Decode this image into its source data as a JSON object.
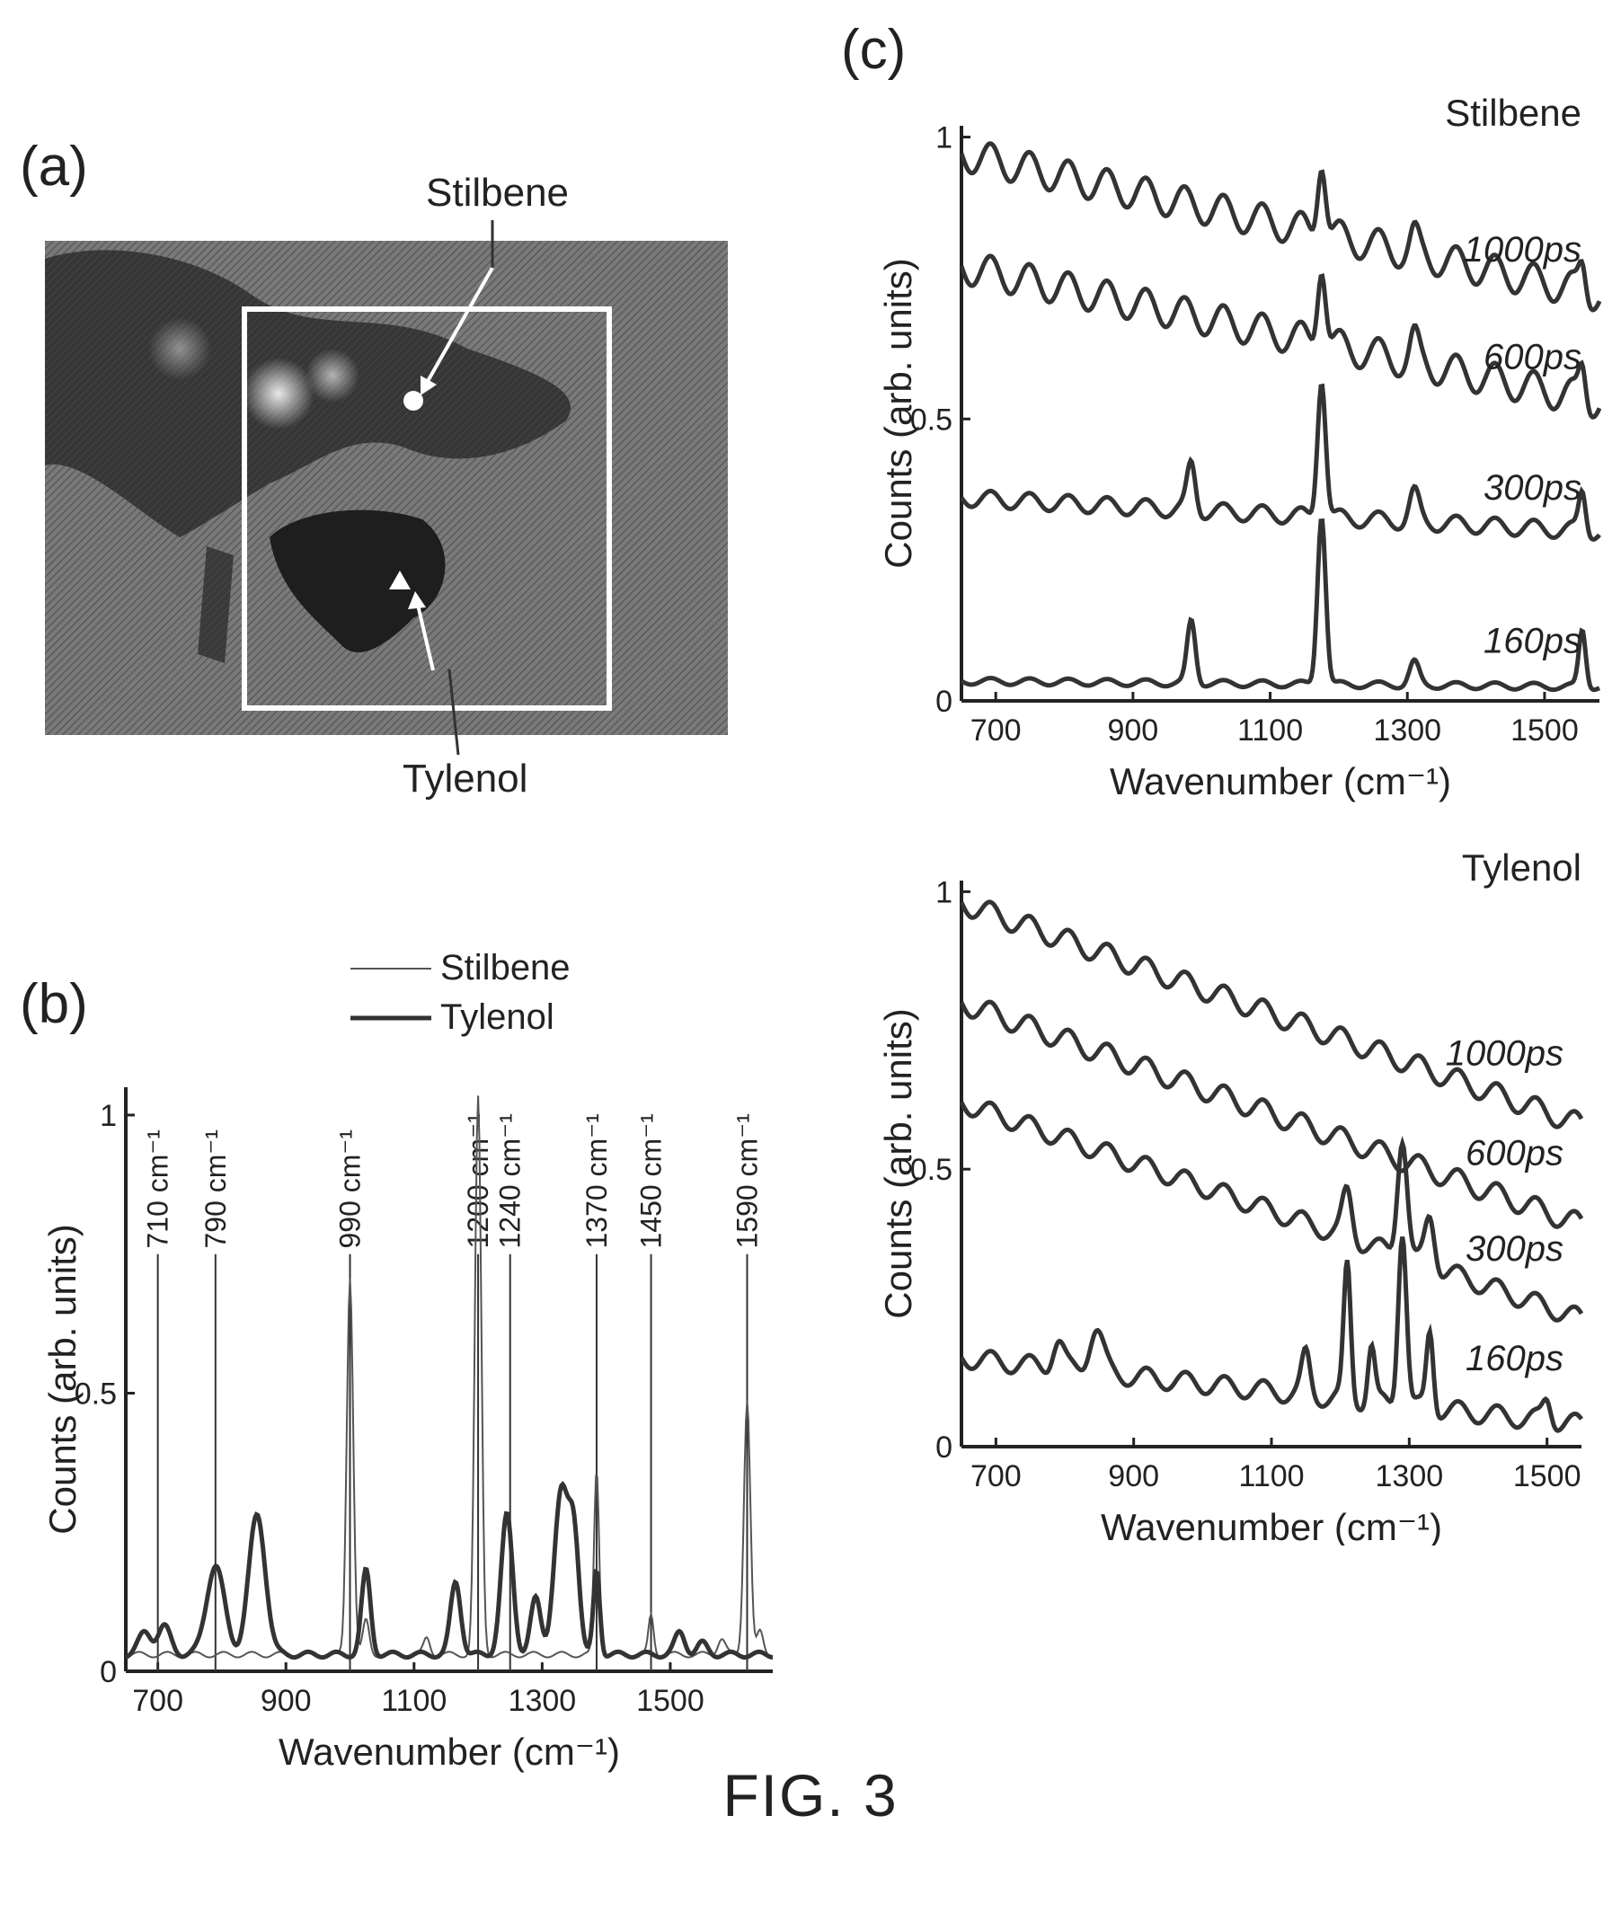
{
  "figure": {
    "caption": "FIG. 3",
    "panels": {
      "a": "(a)",
      "b": "(b)",
      "c": "(c)"
    }
  },
  "micrograph": {
    "labels": {
      "stilbene": "Stilbene",
      "tylenol": "Tylenol"
    },
    "markers": {
      "stilbene": "circle",
      "tylenol": "triangle"
    }
  },
  "chart_data": [
    {
      "panel": "b",
      "type": "line",
      "xlabel": "Wavenumber (cm⁻¹)",
      "ylabel": "Counts (arb. units)",
      "xlim": [
        650,
        1660
      ],
      "ylim": [
        0,
        1.05
      ],
      "xticks": [
        700,
        900,
        1100,
        1300,
        1500
      ],
      "yticks": [
        0,
        0.5,
        1
      ],
      "legend": {
        "placement": "top",
        "entries": [
          "Stilbene",
          "Tylenol"
        ]
      },
      "annotations": [
        "710 cm⁻¹",
        "790 cm⁻¹",
        "990 cm⁻¹",
        "1200 cm⁻¹",
        "1240 cm⁻¹",
        "1370 cm⁻¹",
        "1450 cm⁻¹",
        "1590 cm⁻¹"
      ],
      "annotation_positions": [
        700,
        790,
        1000,
        1200,
        1250,
        1385,
        1470,
        1620
      ],
      "series": [
        {
          "name": "Stilbene",
          "baseline": 0.03,
          "peaks": [
            [
              1000,
              0.68,
              5
            ],
            [
              1200,
              1.0,
              5
            ],
            [
              1385,
              0.33,
              4
            ],
            [
              1470,
              0.07,
              4
            ],
            [
              1620,
              0.46,
              5
            ],
            [
              1025,
              0.06,
              5
            ],
            [
              1120,
              0.03,
              5
            ],
            [
              1580,
              0.03,
              6
            ],
            [
              1640,
              0.04,
              5
            ]
          ]
        },
        {
          "name": "Tylenol",
          "baseline": 0.03,
          "peaks": [
            [
              680,
              0.04,
              10
            ],
            [
              710,
              0.05,
              10
            ],
            [
              790,
              0.16,
              14
            ],
            [
              855,
              0.25,
              13
            ],
            [
              1025,
              0.15,
              7
            ],
            [
              1165,
              0.13,
              8
            ],
            [
              1245,
              0.25,
              9
            ],
            [
              1290,
              0.1,
              8
            ],
            [
              1330,
              0.29,
              11
            ],
            [
              1350,
              0.2,
              8
            ],
            [
              1385,
              0.15,
              5
            ],
            [
              1515,
              0.04,
              8
            ],
            [
              1550,
              0.02,
              8
            ]
          ]
        }
      ]
    },
    {
      "panel": "c-top",
      "type": "line",
      "title": "Stilbene",
      "xlabel": "Wavenumber (cm⁻¹)",
      "ylabel": "Counts (arb. units)",
      "xlim": [
        650,
        1580
      ],
      "ylim": [
        0,
        1.02
      ],
      "xticks": [
        700,
        900,
        1100,
        1300,
        1500
      ],
      "yticks": [
        0,
        0.5,
        1
      ],
      "series": [
        {
          "name": "1000ps",
          "start": 0.97,
          "end": 0.72,
          "ripple": 0.03,
          "peaks": [
            [
              1175,
              0.14,
              6
            ],
            [
              1310,
              0.03,
              6
            ],
            [
              1555,
              0.05,
              5
            ]
          ]
        },
        {
          "name": "600ps",
          "start": 0.77,
          "end": 0.53,
          "ripple": 0.03,
          "peaks": [
            [
              1175,
              0.15,
              6
            ],
            [
              1310,
              0.04,
              6
            ],
            [
              1555,
              0.06,
              5
            ]
          ]
        },
        {
          "name": "300ps",
          "start": 0.36,
          "end": 0.3,
          "ripple": 0.015,
          "peaks": [
            [
              985,
              0.08,
              6
            ],
            [
              1175,
              0.25,
              6
            ],
            [
              1310,
              0.05,
              7
            ],
            [
              1555,
              0.07,
              5
            ]
          ]
        },
        {
          "name": "160ps",
          "start": 0.035,
          "end": 0.025,
          "ripple": 0.006,
          "peaks": [
            [
              985,
              0.11,
              6
            ],
            [
              1175,
              0.3,
              6
            ],
            [
              1310,
              0.04,
              7
            ],
            [
              1555,
              0.1,
              5
            ]
          ]
        }
      ]
    },
    {
      "panel": "c-bottom",
      "type": "line",
      "title": "Tylenol",
      "xlabel": "Wavenumber (cm⁻¹)",
      "ylabel": "Counts (arb. units)",
      "xlim": [
        650,
        1550
      ],
      "ylim": [
        0,
        1.02
      ],
      "xticks": [
        700,
        900,
        1100,
        1300,
        1500
      ],
      "yticks": [
        0,
        0.5,
        1
      ],
      "series": [
        {
          "name": "1000ps",
          "start": 0.98,
          "end": 0.58,
          "ripple": 0.02,
          "peaks": []
        },
        {
          "name": "600ps",
          "start": 0.8,
          "end": 0.4,
          "ripple": 0.02,
          "peaks": []
        },
        {
          "name": "300ps",
          "start": 0.62,
          "end": 0.23,
          "ripple": 0.018,
          "peaks": [
            [
              1210,
              0.08,
              7
            ],
            [
              1290,
              0.22,
              7
            ],
            [
              1330,
              0.09,
              7
            ]
          ]
        },
        {
          "name": "160ps",
          "start": 0.16,
          "end": 0.04,
          "ripple": 0.018,
          "peaks": [
            [
              790,
              0.05,
              8
            ],
            [
              845,
              0.08,
              10
            ],
            [
              1150,
              0.07,
              6
            ],
            [
              1210,
              0.24,
              5
            ],
            [
              1245,
              0.1,
              5
            ],
            [
              1290,
              0.32,
              6
            ],
            [
              1330,
              0.14,
              5
            ],
            [
              1500,
              0.04,
              6
            ]
          ]
        }
      ]
    }
  ]
}
